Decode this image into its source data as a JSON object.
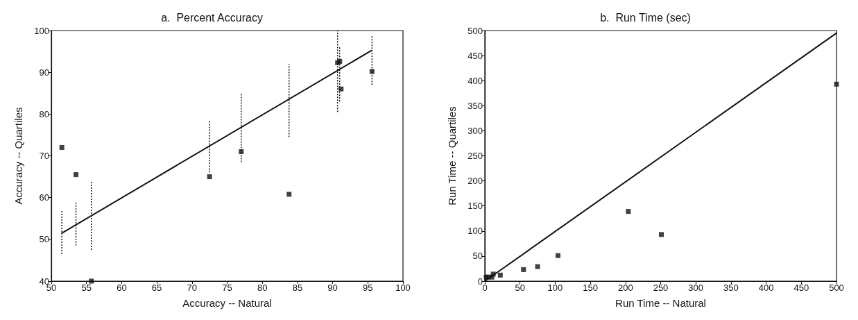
{
  "chart_data": [
    {
      "type": "scatter",
      "title": "a.  Percent Accuracy",
      "xlabel": "Accuracy -- Natural",
      "ylabel": "Accuracy -- Quartiles",
      "xlim": [
        50,
        100
      ],
      "ylim": [
        40,
        100
      ],
      "xticks": [
        50,
        55,
        60,
        65,
        70,
        75,
        80,
        85,
        90,
        95,
        100
      ],
      "yticks": [
        40,
        50,
        60,
        70,
        80,
        90,
        100
      ],
      "grid": false,
      "series": [
        {
          "color": "#111111",
          "marker": "square",
          "x": [
            51.5,
            53.5,
            55.7,
            72.5,
            77,
            83.8,
            90.7,
            91,
            91.2,
            95.6
          ],
          "values": [
            72,
            65.5,
            40,
            65,
            71,
            60.8,
            92.3,
            92.6,
            86,
            90.2
          ],
          "errors": [
            [
              46.5,
              57
            ],
            [
              48.5,
              59
            ],
            [
              47.5,
              64
            ],
            [
              66,
              78.5
            ],
            [
              68.5,
              85
            ],
            [
              74.5,
              92
            ],
            [
              80.5,
              100
            ],
            [
              83,
              96
            ],
            null,
            [
              87,
              99
            ]
          ]
        },
        {
          "type": "line",
          "color": "#111111",
          "marker": "none",
          "line_style": "solid",
          "x": [
            51.5,
            95.5
          ],
          "values": [
            51.5,
            95.2
          ]
        }
      ]
    },
    {
      "type": "scatter",
      "title": "b.  Run Time (sec)",
      "xlabel": "Run Time -- Natural",
      "ylabel": "Run Time -- Quartiles",
      "xlim": [
        0,
        500
      ],
      "ylim": [
        0,
        500
      ],
      "xticks": [
        0,
        50,
        100,
        150,
        200,
        250,
        300,
        350,
        400,
        450,
        500
      ],
      "yticks": [
        0,
        50,
        100,
        150,
        200,
        250,
        300,
        350,
        400,
        450,
        500
      ],
      "grid": false,
      "series": [
        {
          "color": "#111111",
          "marker": "square",
          "x": [
            2,
            5,
            10,
            12,
            22,
            55,
            75,
            104,
            204,
            251,
            500
          ],
          "values": [
            8,
            8,
            8,
            14,
            12,
            23,
            29,
            51,
            139,
            93,
            393
          ]
        },
        {
          "type": "line",
          "color": "#111111",
          "marker": "none",
          "line_style": "solid",
          "x": [
            0,
            500
          ],
          "values": [
            0,
            495
          ]
        }
      ]
    }
  ]
}
